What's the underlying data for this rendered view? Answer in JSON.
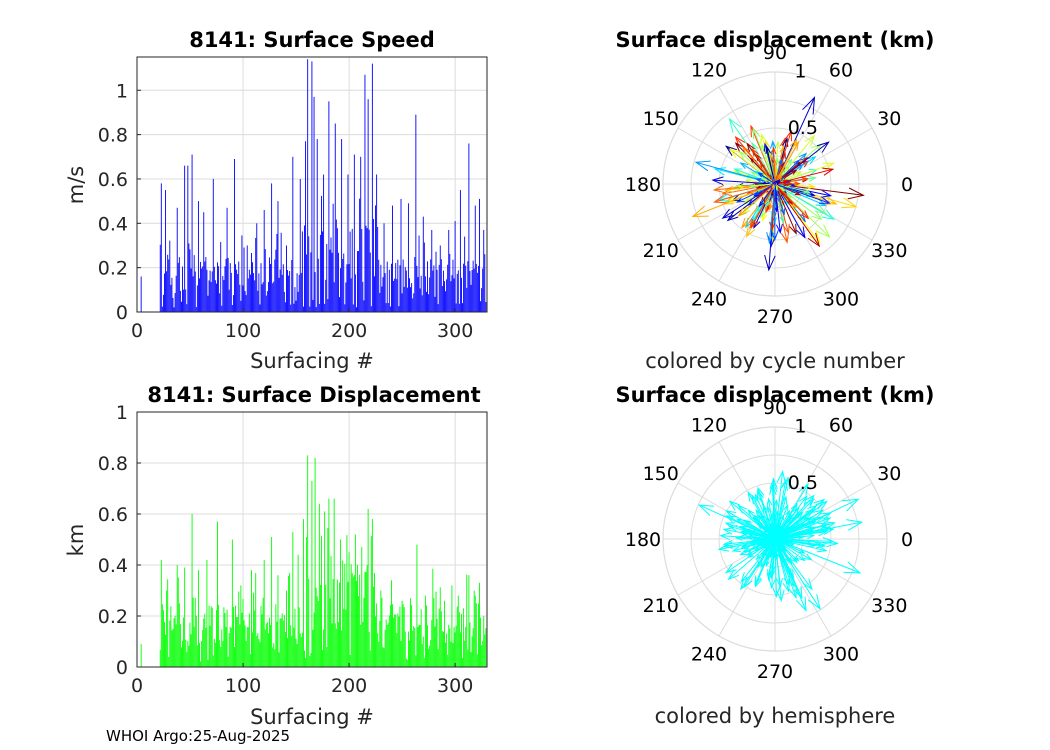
{
  "colors": {
    "speed_bar": "#0000ff",
    "displacement_bar": "#00ff00",
    "hemisphere_arrow": "#00ffff",
    "grid": "#dcdcdc",
    "axis": "#262626"
  },
  "footer": "WHOI Argo:25-Aug-2025",
  "chart_data": [
    {
      "type": "bar",
      "title": "8141: Surface Speed",
      "xlabel": "Surfacing #",
      "ylabel": "m/s",
      "xlim": [
        0,
        330
      ],
      "ylim": [
        0,
        1.15
      ],
      "xticks": [
        0,
        100,
        200,
        300
      ],
      "xtick_labels": [
        "0",
        "100",
        "200",
        "300"
      ],
      "yticks": [
        0,
        0.2,
        0.4,
        0.6,
        0.8,
        1
      ],
      "ytick_labels": [
        "0",
        "0.2",
        "0.4",
        "0.6",
        "0.8",
        "1"
      ],
      "x_range": [
        1,
        329
      ],
      "peaks": [
        {
          "x": 4,
          "y": 0.16
        },
        {
          "x": 23,
          "y": 0.58
        },
        {
          "x": 27,
          "y": 0.55
        },
        {
          "x": 38,
          "y": 0.47
        },
        {
          "x": 45,
          "y": 0.66
        },
        {
          "x": 48,
          "y": 0.66
        },
        {
          "x": 52,
          "y": 0.71
        },
        {
          "x": 58,
          "y": 0.5
        },
        {
          "x": 63,
          "y": 0.45
        },
        {
          "x": 72,
          "y": 0.6
        },
        {
          "x": 85,
          "y": 0.47
        },
        {
          "x": 92,
          "y": 0.69
        },
        {
          "x": 104,
          "y": 0.3
        },
        {
          "x": 113,
          "y": 0.4
        },
        {
          "x": 120,
          "y": 0.46
        },
        {
          "x": 127,
          "y": 0.58
        },
        {
          "x": 133,
          "y": 0.5
        },
        {
          "x": 141,
          "y": 0.3
        },
        {
          "x": 147,
          "y": 0.7
        },
        {
          "x": 154,
          "y": 0.6
        },
        {
          "x": 159,
          "y": 0.77
        },
        {
          "x": 161,
          "y": 1.14
        },
        {
          "x": 165,
          "y": 1.13
        },
        {
          "x": 167,
          "y": 0.97
        },
        {
          "x": 170,
          "y": 0.78
        },
        {
          "x": 176,
          "y": 0.62
        },
        {
          "x": 181,
          "y": 0.95
        },
        {
          "x": 187,
          "y": 0.85
        },
        {
          "x": 193,
          "y": 0.78
        },
        {
          "x": 199,
          "y": 0.62
        },
        {
          "x": 205,
          "y": 0.71
        },
        {
          "x": 211,
          "y": 0.7
        },
        {
          "x": 215,
          "y": 1.07
        },
        {
          "x": 218,
          "y": 0.96
        },
        {
          "x": 222,
          "y": 1.12
        },
        {
          "x": 226,
          "y": 0.62
        },
        {
          "x": 233,
          "y": 0.4
        },
        {
          "x": 241,
          "y": 0.48
        },
        {
          "x": 249,
          "y": 0.51
        },
        {
          "x": 256,
          "y": 0.49
        },
        {
          "x": 263,
          "y": 0.89
        },
        {
          "x": 270,
          "y": 0.43
        },
        {
          "x": 278,
          "y": 0.37
        },
        {
          "x": 286,
          "y": 0.3
        },
        {
          "x": 294,
          "y": 0.37
        },
        {
          "x": 300,
          "y": 0.41
        },
        {
          "x": 305,
          "y": 0.55
        },
        {
          "x": 309,
          "y": 0.34
        },
        {
          "x": 313,
          "y": 0.76
        },
        {
          "x": 319,
          "y": 0.48
        },
        {
          "x": 323,
          "y": 0.51
        },
        {
          "x": 327,
          "y": 0.37
        }
      ]
    },
    {
      "type": "scatter",
      "subtype": "polar-compass",
      "title": "Surface displacement (km)",
      "caption": "colored by cycle number",
      "r_max": 1,
      "r_ticks": [
        0.5,
        1
      ],
      "r_tick_labels": [
        "0.5",
        "1"
      ],
      "angle_ticks": [
        0,
        30,
        60,
        90,
        120,
        150,
        180,
        210,
        240,
        270,
        300,
        330
      ],
      "angle_tick_labels": [
        "0",
        "30",
        "60",
        "90",
        "120",
        "150",
        "180",
        "210",
        "240",
        "270",
        "300",
        "330"
      ],
      "color_scale": "jet by cycle number"
    },
    {
      "type": "bar",
      "title": "8141: Surface Displacement",
      "xlabel": "Surfacing #",
      "ylabel": "km",
      "xlim": [
        0,
        330
      ],
      "ylim": [
        0,
        1
      ],
      "xticks": [
        0,
        100,
        200,
        300
      ],
      "xtick_labels": [
        "0",
        "100",
        "200",
        "300"
      ],
      "yticks": [
        0,
        0.2,
        0.4,
        0.6,
        0.8,
        1
      ],
      "ytick_labels": [
        "0",
        "0.2",
        "0.4",
        "0.6",
        "0.8",
        "1"
      ],
      "x_range": [
        1,
        329
      ],
      "peaks": [
        {
          "x": 4,
          "y": 0.09
        },
        {
          "x": 23,
          "y": 0.42
        },
        {
          "x": 28,
          "y": 0.3
        },
        {
          "x": 38,
          "y": 0.4
        },
        {
          "x": 45,
          "y": 0.39
        },
        {
          "x": 52,
          "y": 0.6
        },
        {
          "x": 58,
          "y": 0.38
        },
        {
          "x": 66,
          "y": 0.42
        },
        {
          "x": 76,
          "y": 0.57
        },
        {
          "x": 90,
          "y": 0.5
        },
        {
          "x": 98,
          "y": 0.32
        },
        {
          "x": 108,
          "y": 0.38
        },
        {
          "x": 120,
          "y": 0.42
        },
        {
          "x": 127,
          "y": 0.51
        },
        {
          "x": 133,
          "y": 0.36
        },
        {
          "x": 141,
          "y": 0.3
        },
        {
          "x": 147,
          "y": 0.53
        },
        {
          "x": 152,
          "y": 0.44
        },
        {
          "x": 157,
          "y": 0.58
        },
        {
          "x": 161,
          "y": 0.83
        },
        {
          "x": 165,
          "y": 0.73
        },
        {
          "x": 168,
          "y": 0.82
        },
        {
          "x": 172,
          "y": 0.64
        },
        {
          "x": 177,
          "y": 0.61
        },
        {
          "x": 181,
          "y": 0.66
        },
        {
          "x": 186,
          "y": 0.66
        },
        {
          "x": 192,
          "y": 0.5
        },
        {
          "x": 200,
          "y": 0.45
        },
        {
          "x": 206,
          "y": 0.52
        },
        {
          "x": 212,
          "y": 0.47
        },
        {
          "x": 218,
          "y": 0.62
        },
        {
          "x": 222,
          "y": 0.58
        },
        {
          "x": 230,
          "y": 0.3
        },
        {
          "x": 240,
          "y": 0.34
        },
        {
          "x": 250,
          "y": 0.26
        },
        {
          "x": 258,
          "y": 0.27
        },
        {
          "x": 264,
          "y": 0.48
        },
        {
          "x": 272,
          "y": 0.28
        },
        {
          "x": 280,
          "y": 0.27
        },
        {
          "x": 290,
          "y": 0.26
        },
        {
          "x": 297,
          "y": 0.32
        },
        {
          "x": 303,
          "y": 0.28
        },
        {
          "x": 308,
          "y": 0.23
        },
        {
          "x": 313,
          "y": 0.36
        },
        {
          "x": 319,
          "y": 0.28
        },
        {
          "x": 323,
          "y": 0.33
        },
        {
          "x": 327,
          "y": 0.2
        }
      ]
    },
    {
      "type": "scatter",
      "subtype": "polar-compass",
      "title": "Surface displacement (km)",
      "caption": "colored by hemisphere",
      "r_max": 1,
      "r_ticks": [
        0.5,
        1
      ],
      "r_tick_labels": [
        "0.5",
        "1"
      ],
      "angle_ticks": [
        0,
        30,
        60,
        90,
        120,
        150,
        180,
        210,
        240,
        270,
        300,
        330
      ],
      "angle_tick_labels": [
        "0",
        "30",
        "60",
        "90",
        "120",
        "150",
        "180",
        "210",
        "240",
        "270",
        "300",
        "330"
      ],
      "color_scale": "single color"
    }
  ]
}
